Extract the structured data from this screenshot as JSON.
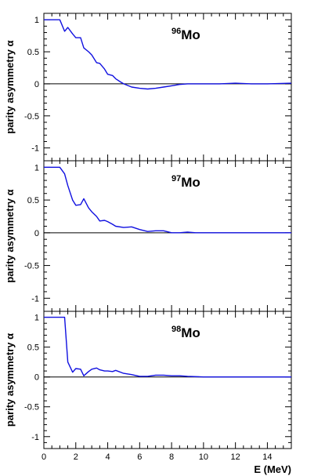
{
  "chart_data": {
    "type": "line",
    "xlabel": "E (MeV)",
    "xlim": [
      0,
      15.5
    ],
    "x_ticks": [
      0,
      2,
      4,
      6,
      8,
      10,
      12,
      14
    ],
    "x_tick_labels": [
      "0",
      "2",
      "4",
      "6",
      "8",
      "10",
      "12",
      "14"
    ],
    "line_color": "#1010e0",
    "panels": [
      {
        "label_mass": "96",
        "label_element": "Mo",
        "ylabel": "parity asymmetry α",
        "ylim": [
          -1.2,
          1.1
        ],
        "y_ticks": [
          1,
          0.5,
          0,
          -0.5,
          -1
        ],
        "y_tick_labels": [
          "1",
          "0.5",
          "0",
          "-0.5",
          "-1"
        ],
        "x": [
          0,
          1.0,
          1.3,
          1.5,
          1.8,
          2.0,
          2.3,
          2.5,
          2.8,
          3.0,
          3.3,
          3.5,
          3.8,
          4.0,
          4.3,
          4.5,
          4.8,
          5.0,
          5.5,
          6.0,
          6.5,
          7.0,
          7.5,
          8.0,
          8.5,
          9.0,
          10.0,
          11.0,
          12.0,
          13.0,
          14.0,
          15.5
        ],
        "y": [
          1.0,
          1.0,
          0.82,
          0.88,
          0.78,
          0.72,
          0.72,
          0.56,
          0.5,
          0.45,
          0.33,
          0.32,
          0.23,
          0.15,
          0.13,
          0.08,
          0.03,
          0.0,
          -0.05,
          -0.07,
          -0.08,
          -0.07,
          -0.05,
          -0.03,
          -0.01,
          0.0,
          0.0,
          0.0,
          0.01,
          0.0,
          0.0,
          0.01
        ]
      },
      {
        "label_mass": "97",
        "label_element": "Mo",
        "ylabel": "parity asymmetry α",
        "ylim": [
          -1.2,
          1.1
        ],
        "y_ticks": [
          1,
          0.5,
          0,
          -0.5,
          -1
        ],
        "y_tick_labels": [
          "1",
          "0.5",
          "0",
          "-0.5",
          "-1"
        ],
        "x": [
          0,
          1.0,
          1.3,
          1.5,
          1.8,
          2.0,
          2.3,
          2.5,
          2.8,
          3.0,
          3.3,
          3.5,
          3.8,
          4.0,
          4.3,
          4.5,
          5.0,
          5.5,
          6.0,
          6.5,
          7.0,
          7.5,
          8.0,
          8.5,
          9.0,
          9.5,
          10.0,
          11.0,
          12.0,
          13.0,
          14.0,
          15.5
        ],
        "y": [
          1.0,
          1.0,
          0.9,
          0.72,
          0.5,
          0.42,
          0.43,
          0.52,
          0.38,
          0.32,
          0.25,
          0.18,
          0.19,
          0.17,
          0.13,
          0.1,
          0.08,
          0.09,
          0.05,
          0.02,
          0.03,
          0.03,
          0.0,
          0.0,
          0.01,
          0.0,
          0.0,
          0.0,
          0.0,
          0.0,
          0.0,
          0.0
        ]
      },
      {
        "label_mass": "98",
        "label_element": "Mo",
        "ylabel": "parity asymmetry α",
        "ylim": [
          -1.2,
          1.1
        ],
        "y_ticks": [
          1,
          0.5,
          0,
          -0.5,
          -1
        ],
        "y_tick_labels": [
          "1",
          "0.5",
          "0",
          "-0.5",
          "-1"
        ],
        "x": [
          0,
          1.3,
          1.5,
          1.8,
          2.0,
          2.3,
          2.5,
          2.8,
          3.0,
          3.3,
          3.5,
          3.8,
          4.0,
          4.3,
          4.5,
          5.0,
          5.5,
          6.0,
          6.5,
          7.0,
          7.5,
          8.0,
          8.5,
          9.0,
          10.0,
          11.0,
          12.0,
          13.0,
          14.0,
          15.5
        ],
        "y": [
          1.0,
          1.0,
          0.25,
          0.08,
          0.14,
          0.13,
          0.02,
          0.09,
          0.13,
          0.15,
          0.12,
          0.1,
          0.1,
          0.09,
          0.11,
          0.06,
          0.04,
          0.01,
          0.01,
          0.03,
          0.03,
          0.02,
          0.02,
          0.01,
          0.0,
          0.0,
          0.0,
          0.0,
          0.0,
          0.0
        ]
      }
    ]
  }
}
